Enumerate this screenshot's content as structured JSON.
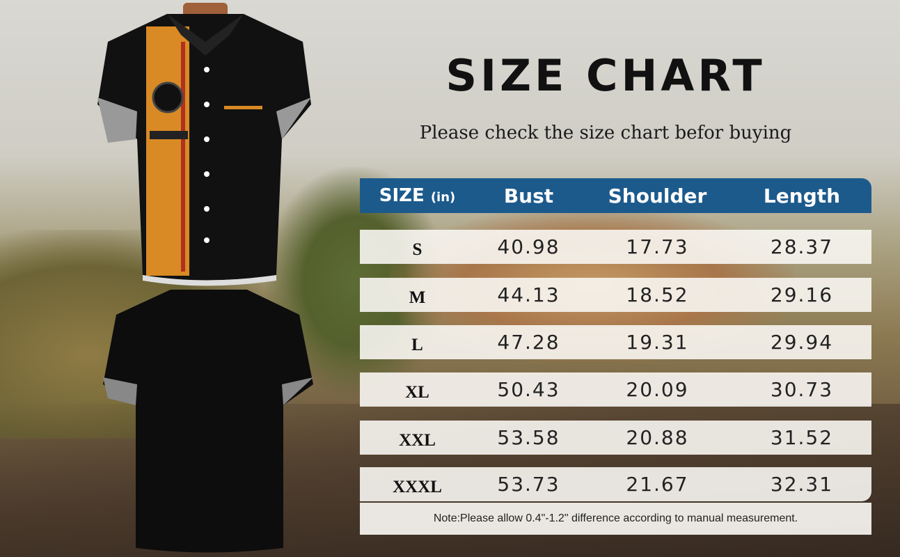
{
  "title": "SIZE CHART",
  "subtitle": "Please check the size chart befor buying",
  "table": {
    "headers": [
      "SIZE",
      "(in)",
      "Bust",
      "Shoulder",
      "Length"
    ],
    "rows": [
      {
        "size": "S",
        "bust": "40.98",
        "shoulder": "17.73",
        "length": "28.37"
      },
      {
        "size": "M",
        "bust": "44.13",
        "shoulder": "18.52",
        "length": "29.16"
      },
      {
        "size": "L",
        "bust": "47.28",
        "shoulder": "19.31",
        "length": "29.94"
      },
      {
        "size": "XL",
        "bust": "50.43",
        "shoulder": "20.09",
        "length": "30.73"
      },
      {
        "size": "XXL",
        "bust": "53.58",
        "shoulder": "20.88",
        "length": "31.52"
      },
      {
        "size": "XXXL",
        "bust": "53.73",
        "shoulder": "21.67",
        "length": "32.31"
      }
    ],
    "note": "Note:Please allow 0.4\"-1.2\" difference according to manual measurement."
  },
  "colors": {
    "header": "#1d5a8c",
    "shirt_black": "#111111",
    "shirt_orange": "#d98a24"
  },
  "images": [
    "shirt-front",
    "shirt-back"
  ]
}
